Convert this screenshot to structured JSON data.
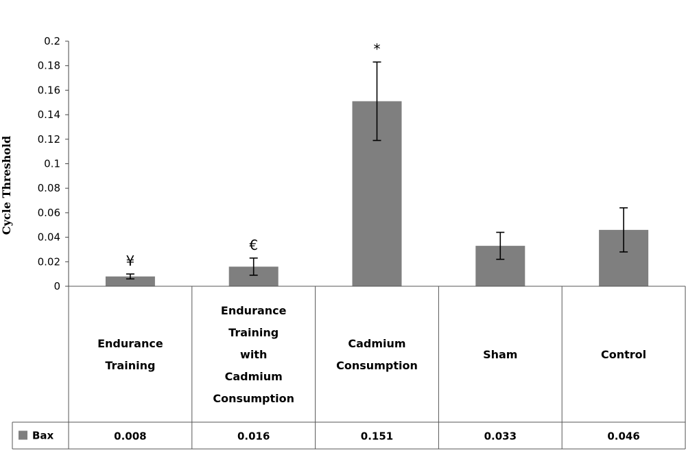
{
  "chart_data": {
    "type": "bar",
    "title": "",
    "xlabel": "",
    "ylabel": "Cycle Threshold",
    "ylim": [
      0,
      0.2
    ],
    "yticks": [
      "0",
      "0.02",
      "0.04",
      "0.06",
      "0.08",
      "0.1",
      "0.12",
      "0.14",
      "0.16",
      "0.18",
      "0.2"
    ],
    "categories": [
      [
        "Endurance",
        "Training"
      ],
      [
        "Endurance",
        "Training",
        "with",
        "Cadmium",
        "Consumption"
      ],
      [
        "Cadmium",
        "Consumption"
      ],
      [
        "Sham"
      ],
      [
        "Control"
      ]
    ],
    "series": [
      {
        "name": "Bax",
        "color": "#7f7f7f",
        "values": [
          0.008,
          0.016,
          0.151,
          0.033,
          0.046
        ],
        "value_labels": [
          "0.008",
          "0.016",
          "0.151",
          "0.033",
          "0.046"
        ],
        "error": [
          0.002,
          0.007,
          0.032,
          0.011,
          0.018
        ]
      }
    ],
    "annotations": [
      "¥",
      "€",
      "*",
      "",
      ""
    ],
    "grid": false,
    "legend": "data-table"
  }
}
